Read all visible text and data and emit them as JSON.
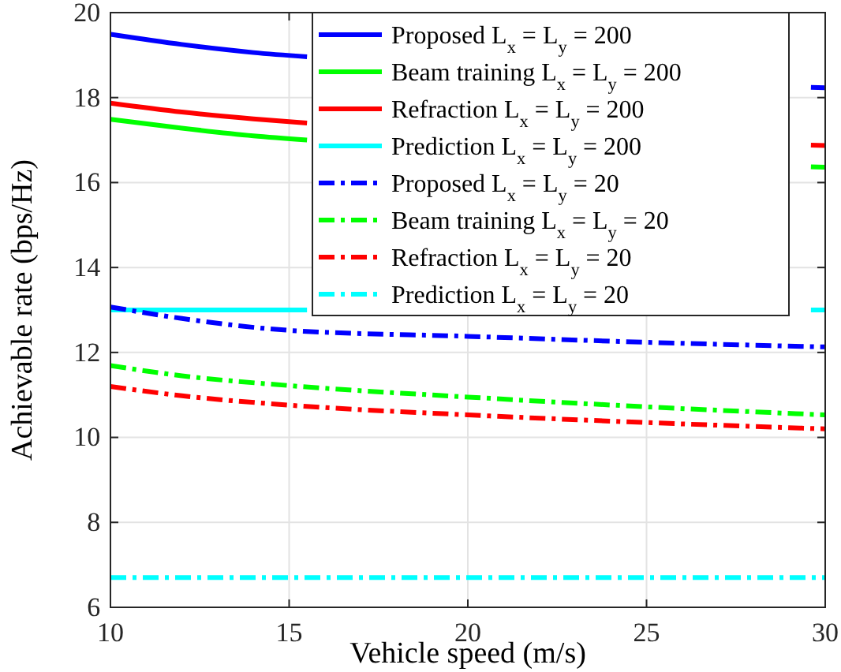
{
  "chart_data": {
    "type": "line",
    "xlabel": "Vehicle speed (m/s)",
    "ylabel": "Achievable rate (bps/Hz)",
    "x": [
      10,
      12,
      15,
      20,
      25,
      30
    ],
    "xlim": [
      10,
      30
    ],
    "xticks": [
      10,
      15,
      20,
      25,
      30
    ],
    "ylim": [
      6,
      20
    ],
    "yticks": [
      6,
      8,
      10,
      12,
      14,
      16,
      18,
      20
    ],
    "grid": true,
    "legend": "top right",
    "series": [
      {
        "name": "Proposed L$_{x}$ = L$_{y}$ = 200",
        "color": "#0000ff",
        "line_style": "solid",
        "x": [
          10,
          12,
          14,
          15.5,
          16,
          29.6,
          30
        ],
        "values": [
          19.49,
          19.25,
          19.06,
          18.96,
          null,
          18.24,
          18.23
        ]
      },
      {
        "name": "Beam training L$_{x}$ = L$_{y}$ = 200",
        "color": "#00ff00",
        "line_style": "solid",
        "x": [
          10,
          12,
          14,
          15.5,
          16,
          29.6,
          30
        ],
        "values": [
          17.49,
          17.28,
          17.1,
          17.0,
          null,
          16.37,
          16.36
        ]
      },
      {
        "name": "Refraction L$_{x}$ = L$_{y}$ = 200",
        "color": "#ff0000",
        "line_style": "solid",
        "x": [
          10,
          12,
          14,
          15.5,
          16,
          29.6,
          30
        ],
        "values": [
          17.87,
          17.66,
          17.5,
          17.4,
          null,
          16.88,
          16.87
        ]
      },
      {
        "name": "Prediction L$_{x}$ = L$_{y}$ = 200",
        "color": "#00ffff",
        "line_style": "solid",
        "x": [
          10,
          12,
          14,
          15.5,
          16,
          29.6,
          30
        ],
        "values": [
          13.0,
          13.0,
          13.0,
          13.0,
          null,
          13.0,
          13.0
        ]
      },
      {
        "name": "Proposed L$_{x}$ = L$_{y}$ = 20",
        "color": "#0000ff",
        "line_style": "dashed",
        "values": [
          13.07,
          12.8,
          12.52,
          12.38,
          12.24,
          12.13
        ]
      },
      {
        "name": "Beam training L$_{x}$ = L$_{y}$ = 20",
        "color": "#00ff00",
        "line_style": "dashed",
        "values": [
          11.69,
          11.45,
          11.22,
          10.95,
          10.72,
          10.53
        ]
      },
      {
        "name": "Refraction L$_{x}$ = L$_{y}$ = 20",
        "color": "#ff0000",
        "line_style": "dashed",
        "values": [
          11.2,
          10.98,
          10.76,
          10.53,
          10.35,
          10.2
        ]
      },
      {
        "name": "Prediction L$_{x}$ = L$_{y}$ = 20",
        "color": "#00ffff",
        "line_style": "dashed",
        "values": [
          6.7,
          6.7,
          6.7,
          6.7,
          6.7,
          6.7
        ]
      }
    ]
  }
}
